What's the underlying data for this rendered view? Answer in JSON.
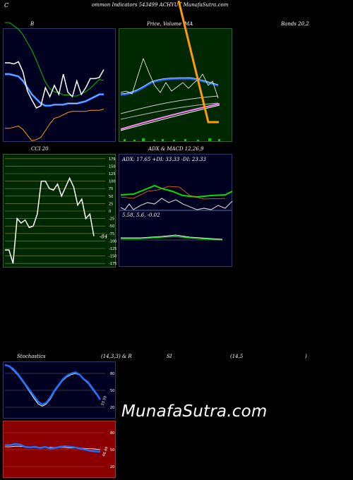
{
  "header": {
    "c": "C",
    "title": "ommon  Indicators 543499 ACHYUT MunafaSutra.com"
  },
  "panels": {
    "bands_left_label": "B",
    "price_label": "Price,",
    "price_label2": "Volume",
    "ma_label": "MA",
    "bands_right_label": "Bands 20,2",
    "cci_label": "CCI 20",
    "adx_label": "ADX  & MACD 12,26,9",
    "adx_values": "ADX: 17.65  +DI: 33.33 -DI: 23.33",
    "macd_values": "5.58,  5.6,  -0.02",
    "stoch_label": "Stochastics",
    "stoch_params": "(14,3,3) & R",
    "rsi_label": "SI",
    "rsi_params": "(14,5",
    "rsi_close": ")",
    "cci_current": "-84",
    "stoch_current": "33.55",
    "rsi_current": "46.49",
    "watermark": "MunafaSutra.com"
  },
  "colors": {
    "navy": "#000020",
    "green_panel": "#002800",
    "cci_panel": "#003300",
    "rsi_panel": "#8b0000",
    "blue": "#1e6fff",
    "orange": "#ff9c00",
    "gridline": "#8a8a4a"
  },
  "chart_data": [
    {
      "type": "line",
      "title": "B",
      "series": [
        {
          "values": [
            30,
            30,
            31,
            29,
            38,
            55,
            63,
            70,
            68,
            52,
            60,
            50,
            58,
            40,
            56,
            60,
            46,
            58,
            52,
            44,
            44,
            43,
            36
          ]
        },
        {
          "values": [
            40,
            40,
            41,
            42,
            46,
            52,
            58,
            62,
            66,
            68,
            68,
            67,
            67,
            67,
            66,
            66,
            66,
            65,
            64,
            62,
            60,
            58,
            58
          ]
        },
        {
          "values": [
            88,
            88,
            87,
            86,
            89,
            94,
            99,
            98,
            96,
            90,
            84,
            79,
            78,
            76,
            74,
            73,
            73,
            73,
            73,
            72,
            72,
            72,
            71
          ]
        }
      ]
    },
    {
      "type": "line",
      "title": "CCI 20",
      "y_ticks": [
        175,
        150,
        125,
        100,
        75,
        50,
        25,
        0,
        -25,
        -50,
        -75,
        -100,
        -125,
        -150,
        -175
      ],
      "series": [
        {
          "values": [
            -130,
            -130,
            -175,
            -25,
            -40,
            -30,
            -55,
            -50,
            -10,
            100,
            100,
            75,
            70,
            90,
            50,
            80,
            110,
            80,
            20,
            40,
            -25,
            -10,
            -84
          ]
        }
      ]
    },
    {
      "type": "line",
      "title": "Stochastics",
      "y_ticks": [
        80,
        50,
        20
      ],
      "series": [
        {
          "values": [
            95,
            93,
            88,
            80,
            70,
            60,
            50,
            40,
            30,
            25,
            28,
            38,
            50,
            60,
            70,
            76,
            80,
            82,
            78,
            70,
            65,
            55,
            45,
            33.55
          ]
        },
        {
          "values": [
            95,
            92,
            86,
            78,
            68,
            58,
            47,
            36,
            26,
            22,
            26,
            35,
            48,
            58,
            68,
            74,
            78,
            80,
            77,
            69,
            63,
            53,
            43,
            35
          ]
        }
      ]
    },
    {
      "type": "line",
      "title": "RSI",
      "y_ticks": [
        80,
        50,
        20
      ],
      "series": [
        {
          "values": [
            58,
            58,
            60,
            59,
            55,
            54,
            55,
            53,
            55,
            52,
            53,
            55,
            56,
            55,
            54,
            52,
            50,
            48,
            47,
            46.49
          ]
        },
        {
          "values": [
            55,
            55,
            56,
            56,
            55,
            55,
            54,
            54,
            54,
            54,
            54,
            54,
            54,
            53,
            53,
            53,
            52,
            52,
            51,
            50
          ]
        }
      ]
    }
  ]
}
